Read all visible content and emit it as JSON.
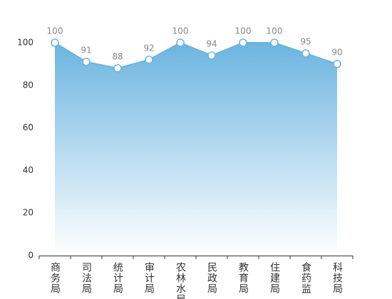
{
  "chart_data": {
    "type": "area",
    "categories": [
      "商务局",
      "司法局",
      "统计局",
      "审计局",
      "农林水局",
      "民政局",
      "教育局",
      "住建局",
      "食药监",
      "科技局"
    ],
    "values": [
      100,
      91,
      88,
      92,
      100,
      94,
      100,
      100,
      95,
      90
    ],
    "color": "#6cb4e0",
    "ylim": [
      0,
      100
    ],
    "yticks": [
      0,
      20,
      40,
      60,
      80,
      100
    ],
    "grid": false
  }
}
